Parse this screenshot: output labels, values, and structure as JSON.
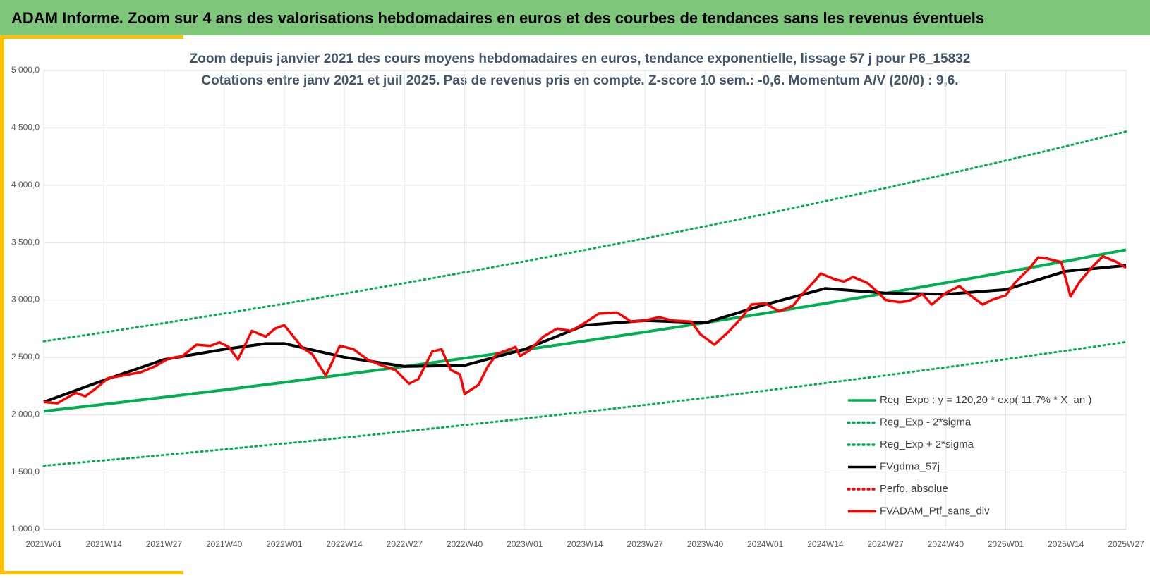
{
  "header": {
    "title": "ADAM Informe. Zoom sur 4 ans des valorisations hebdomadaires en euros et des courbes de tendances sans les revenus éventuels"
  },
  "chart_data": {
    "type": "line",
    "subtitle": [
      "Zoom depuis janvier 2021 des cours moyens hebdomadaires  en euros, tendance exponentielle, lissage 57 j pour P6_15832",
      "Cotations  entre janv 2021 et juil 2025. Pas de revenus pris en compte. Z-score 10 sem.: -0,6. Momentum A/V (20/0) : 9,6."
    ],
    "xlim": [
      0,
      234
    ],
    "xticks": [
      {
        "value": 0,
        "label": "2021W01"
      },
      {
        "value": 13,
        "label": "2021W14"
      },
      {
        "value": 26,
        "label": "2021W27"
      },
      {
        "value": 39,
        "label": "2021W40"
      },
      {
        "value": 52,
        "label": "2022W01"
      },
      {
        "value": 65,
        "label": "2022W14"
      },
      {
        "value": 78,
        "label": "2022W27"
      },
      {
        "value": 91,
        "label": "2022W40"
      },
      {
        "value": 104,
        "label": "2023W01"
      },
      {
        "value": 117,
        "label": "2023W14"
      },
      {
        "value": 130,
        "label": "2023W27"
      },
      {
        "value": 143,
        "label": "2023W40"
      },
      {
        "value": 156,
        "label": "2024W01"
      },
      {
        "value": 169,
        "label": "2024W14"
      },
      {
        "value": 182,
        "label": "2024W27"
      },
      {
        "value": 195,
        "label": "2024W40"
      },
      {
        "value": 208,
        "label": "2025W01"
      },
      {
        "value": 221,
        "label": "2025W14"
      },
      {
        "value": 234,
        "label": "2025W27"
      }
    ],
    "ylim": [
      1000,
      5000
    ],
    "yticks": [
      {
        "value": 1000,
        "label": "1 000,0"
      },
      {
        "value": 1500,
        "label": "1 500,0"
      },
      {
        "value": 2000,
        "label": "2 000,0"
      },
      {
        "value": 2500,
        "label": "2 500,0"
      },
      {
        "value": 3000,
        "label": "3 000,0"
      },
      {
        "value": 3500,
        "label": "3 500,0"
      },
      {
        "value": 4000,
        "label": "4 000,0"
      },
      {
        "value": 4500,
        "label": "4 500,0"
      },
      {
        "value": 5000,
        "label": "5 000,0"
      }
    ],
    "grid": true,
    "legend": "lower-right",
    "series": [
      {
        "name": "Reg_Expo : y = 120,20 * exp( 11,7% *  X_an )",
        "color": "#00b050",
        "style": "solid",
        "x": [
          0,
          13,
          26,
          39,
          52,
          65,
          78,
          91,
          104,
          117,
          130,
          143,
          156,
          169,
          182,
          195,
          208,
          221,
          234
        ],
        "values": [
          2030,
          2090,
          2152,
          2216,
          2282,
          2350,
          2420,
          2492,
          2566,
          2642,
          2720,
          2801,
          2884,
          2970,
          3058,
          3149,
          3242,
          3338,
          3437
        ]
      },
      {
        "name": "Reg_Exp - 2*sigma",
        "color": "#00b050",
        "style": "dotted",
        "x": [
          0,
          13,
          26,
          39,
          52,
          65,
          78,
          91,
          104,
          117,
          130,
          143,
          156,
          169,
          182,
          195,
          208,
          221,
          234
        ],
        "values": [
          1555,
          1601,
          1648,
          1697,
          1748,
          1800,
          1854,
          1909,
          1966,
          2024,
          2084,
          2146,
          2209,
          2275,
          2342,
          2412,
          2483,
          2557,
          2633
        ]
      },
      {
        "name": "Reg_Exp + 2*sigma",
        "color": "#00b050",
        "style": "dotted",
        "x": [
          0,
          13,
          26,
          39,
          52,
          65,
          78,
          91,
          104,
          117,
          130,
          143,
          156,
          169,
          182,
          195,
          208,
          221,
          234
        ],
        "values": [
          2639,
          2717,
          2798,
          2881,
          2967,
          3055,
          3146,
          3240,
          3336,
          3435,
          3536,
          3641,
          3749,
          3861,
          3975,
          4094,
          4215,
          4339,
          4468
        ]
      },
      {
        "name": "FVgdma_57j",
        "color": "#000000",
        "style": "solid",
        "x": [
          0,
          13,
          26,
          39,
          48,
          52,
          65,
          78,
          91,
          104,
          117,
          130,
          143,
          156,
          169,
          182,
          195,
          208,
          221,
          234
        ],
        "values": [
          2110,
          2300,
          2480,
          2570,
          2620,
          2620,
          2500,
          2420,
          2430,
          2570,
          2780,
          2820,
          2800,
          2960,
          3100,
          3060,
          3050,
          3090,
          3250,
          3300
        ]
      },
      {
        "name": "Perfo. absolue",
        "color": "#ff0000",
        "style": "dotted"
      },
      {
        "name": "FVADAM_Ptf_sans_div",
        "color": "#ff0000",
        "style": "solid",
        "x": [
          0,
          3,
          6,
          7,
          9,
          11,
          14,
          17,
          21,
          24,
          27,
          30,
          33,
          36,
          38,
          40,
          42,
          45,
          48,
          50,
          52,
          54,
          56,
          58,
          61,
          64,
          67,
          70,
          73,
          76,
          79,
          81,
          84,
          86,
          88,
          90,
          91,
          94,
          96,
          98,
          102,
          103,
          105,
          108,
          111,
          114,
          117,
          120,
          124,
          127,
          130,
          133,
          136,
          140,
          142,
          145,
          148,
          151,
          153,
          156,
          159,
          162,
          164,
          167,
          168,
          171,
          173,
          175,
          178,
          180,
          182,
          185,
          187,
          190,
          192,
          195,
          198,
          200,
          203,
          205,
          208,
          210,
          213,
          215,
          217,
          220,
          222,
          224,
          227,
          229,
          232,
          234
        ],
        "values": [
          2110,
          2100,
          2170,
          2190,
          2160,
          2220,
          2320,
          2340,
          2370,
          2420,
          2490,
          2510,
          2610,
          2600,
          2630,
          2590,
          2480,
          2730,
          2680,
          2750,
          2780,
          2680,
          2580,
          2530,
          2340,
          2600,
          2570,
          2480,
          2430,
          2390,
          2270,
          2310,
          2550,
          2570,
          2390,
          2350,
          2180,
          2260,
          2420,
          2530,
          2590,
          2510,
          2560,
          2680,
          2750,
          2730,
          2800,
          2880,
          2890,
          2810,
          2820,
          2850,
          2820,
          2810,
          2700,
          2610,
          2720,
          2850,
          2960,
          2970,
          2900,
          2950,
          3050,
          3180,
          3230,
          3180,
          3160,
          3200,
          3150,
          3080,
          3000,
          2980,
          2990,
          3050,
          2960,
          3060,
          3120,
          3050,
          2960,
          3000,
          3040,
          3150,
          3270,
          3370,
          3360,
          3330,
          3030,
          3160,
          3300,
          3380,
          3330,
          3280
        ]
      }
    ]
  }
}
